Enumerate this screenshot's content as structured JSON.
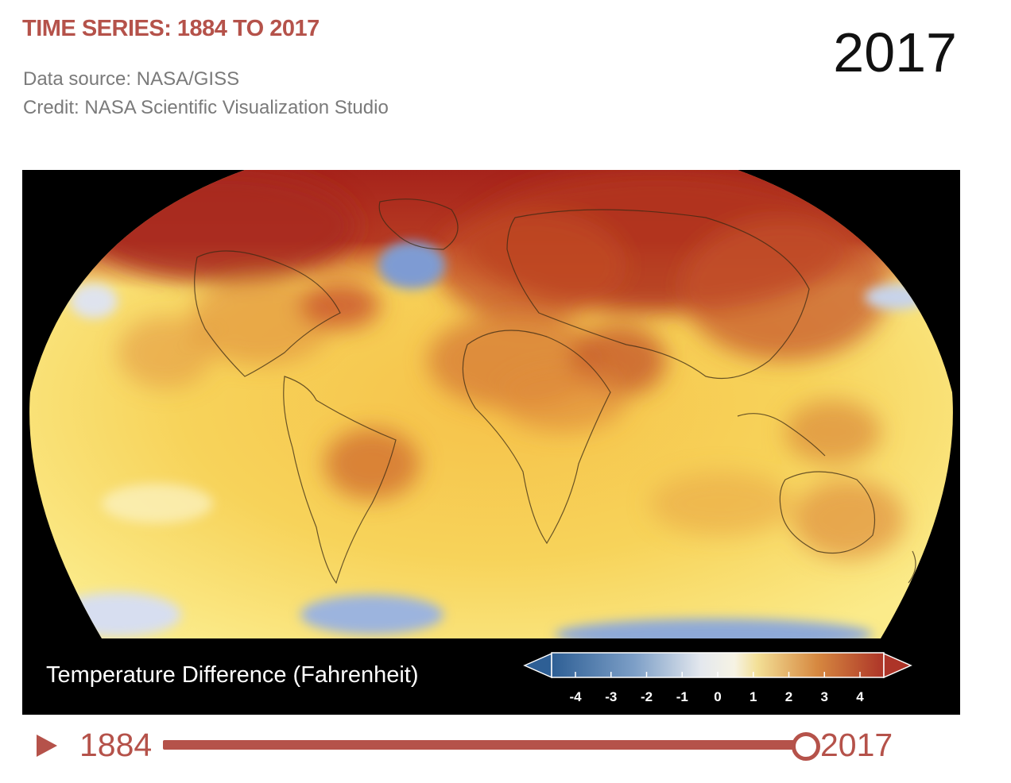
{
  "header": {
    "title": "TIME SERIES: 1884 TO 2017",
    "source": "Data source: NASA/GISS",
    "credit": "Credit: NASA Scientific Visualization Studio",
    "current_year": "2017"
  },
  "map": {
    "legend_title": "Temperature Difference (Fahrenheit)",
    "scale_ticks": [
      "-4",
      "-3",
      "-2",
      "-1",
      "0",
      "1",
      "2",
      "3",
      "4"
    ],
    "scale_colors": {
      "cold": "#2e5f95",
      "neutral": "#f6f6f2",
      "warm": "#ad3428"
    }
  },
  "timeline": {
    "start_label": "1884",
    "end_label": "2017",
    "progress": 1.0,
    "accent_color": "#b5524a"
  }
}
